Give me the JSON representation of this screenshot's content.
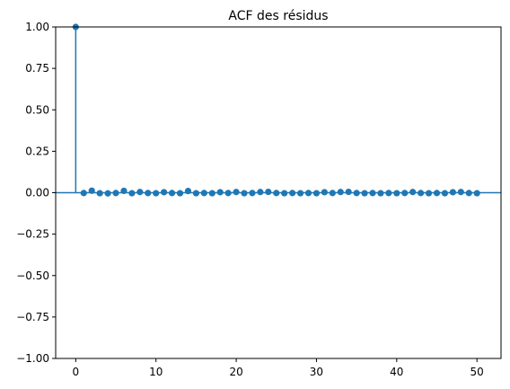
{
  "chart_data": {
    "type": "scatter",
    "subtype": "acf-stem",
    "title": "ACF des résidus",
    "xlabel": "",
    "ylabel": "",
    "xlim": [
      -2.5,
      53
    ],
    "ylim": [
      -1.0,
      1.0
    ],
    "x_ticks": [
      0,
      10,
      20,
      30,
      40,
      50
    ],
    "x_tick_labels": [
      "0",
      "10",
      "20",
      "30",
      "40",
      "50"
    ],
    "y_ticks": [
      -1.0,
      -0.75,
      -0.5,
      -0.25,
      0.0,
      0.25,
      0.5,
      0.75,
      1.0
    ],
    "y_tick_labels": [
      "−1.00",
      "−0.75",
      "−0.50",
      "−0.25",
      "0.00",
      "0.25",
      "0.50",
      "0.75",
      "1.00"
    ],
    "grid": false,
    "legend": "none",
    "colors": {
      "stem": "#1f77b4",
      "marker": "#1f77b4",
      "zero_line": "#1f77b4"
    },
    "series": [
      {
        "lags": [
          0,
          1,
          2,
          3,
          4,
          5,
          6,
          7,
          8,
          9,
          10,
          11,
          12,
          13,
          14,
          15,
          16,
          17,
          18,
          19,
          20,
          21,
          22,
          23,
          24,
          25,
          26,
          27,
          28,
          29,
          30,
          31,
          32,
          33,
          34,
          35,
          36,
          37,
          38,
          39,
          40,
          41,
          42,
          43,
          44,
          45,
          46,
          47,
          48,
          49,
          50
        ],
        "values": [
          1.0,
          -0.002,
          0.012,
          -0.003,
          -0.004,
          -0.002,
          0.011,
          -0.003,
          0.004,
          -0.002,
          -0.003,
          0.003,
          -0.002,
          -0.003,
          0.01,
          -0.003,
          -0.002,
          -0.003,
          0.003,
          -0.002,
          0.004,
          -0.003,
          -0.002,
          0.004,
          0.005,
          -0.002,
          -0.003,
          -0.002,
          -0.003,
          -0.002,
          -0.003,
          0.003,
          -0.002,
          0.004,
          0.005,
          -0.002,
          -0.003,
          -0.002,
          -0.003,
          -0.002,
          -0.003,
          -0.002,
          0.004,
          -0.002,
          -0.003,
          -0.002,
          -0.003,
          0.003,
          0.004,
          -0.002,
          -0.003
        ]
      }
    ]
  }
}
